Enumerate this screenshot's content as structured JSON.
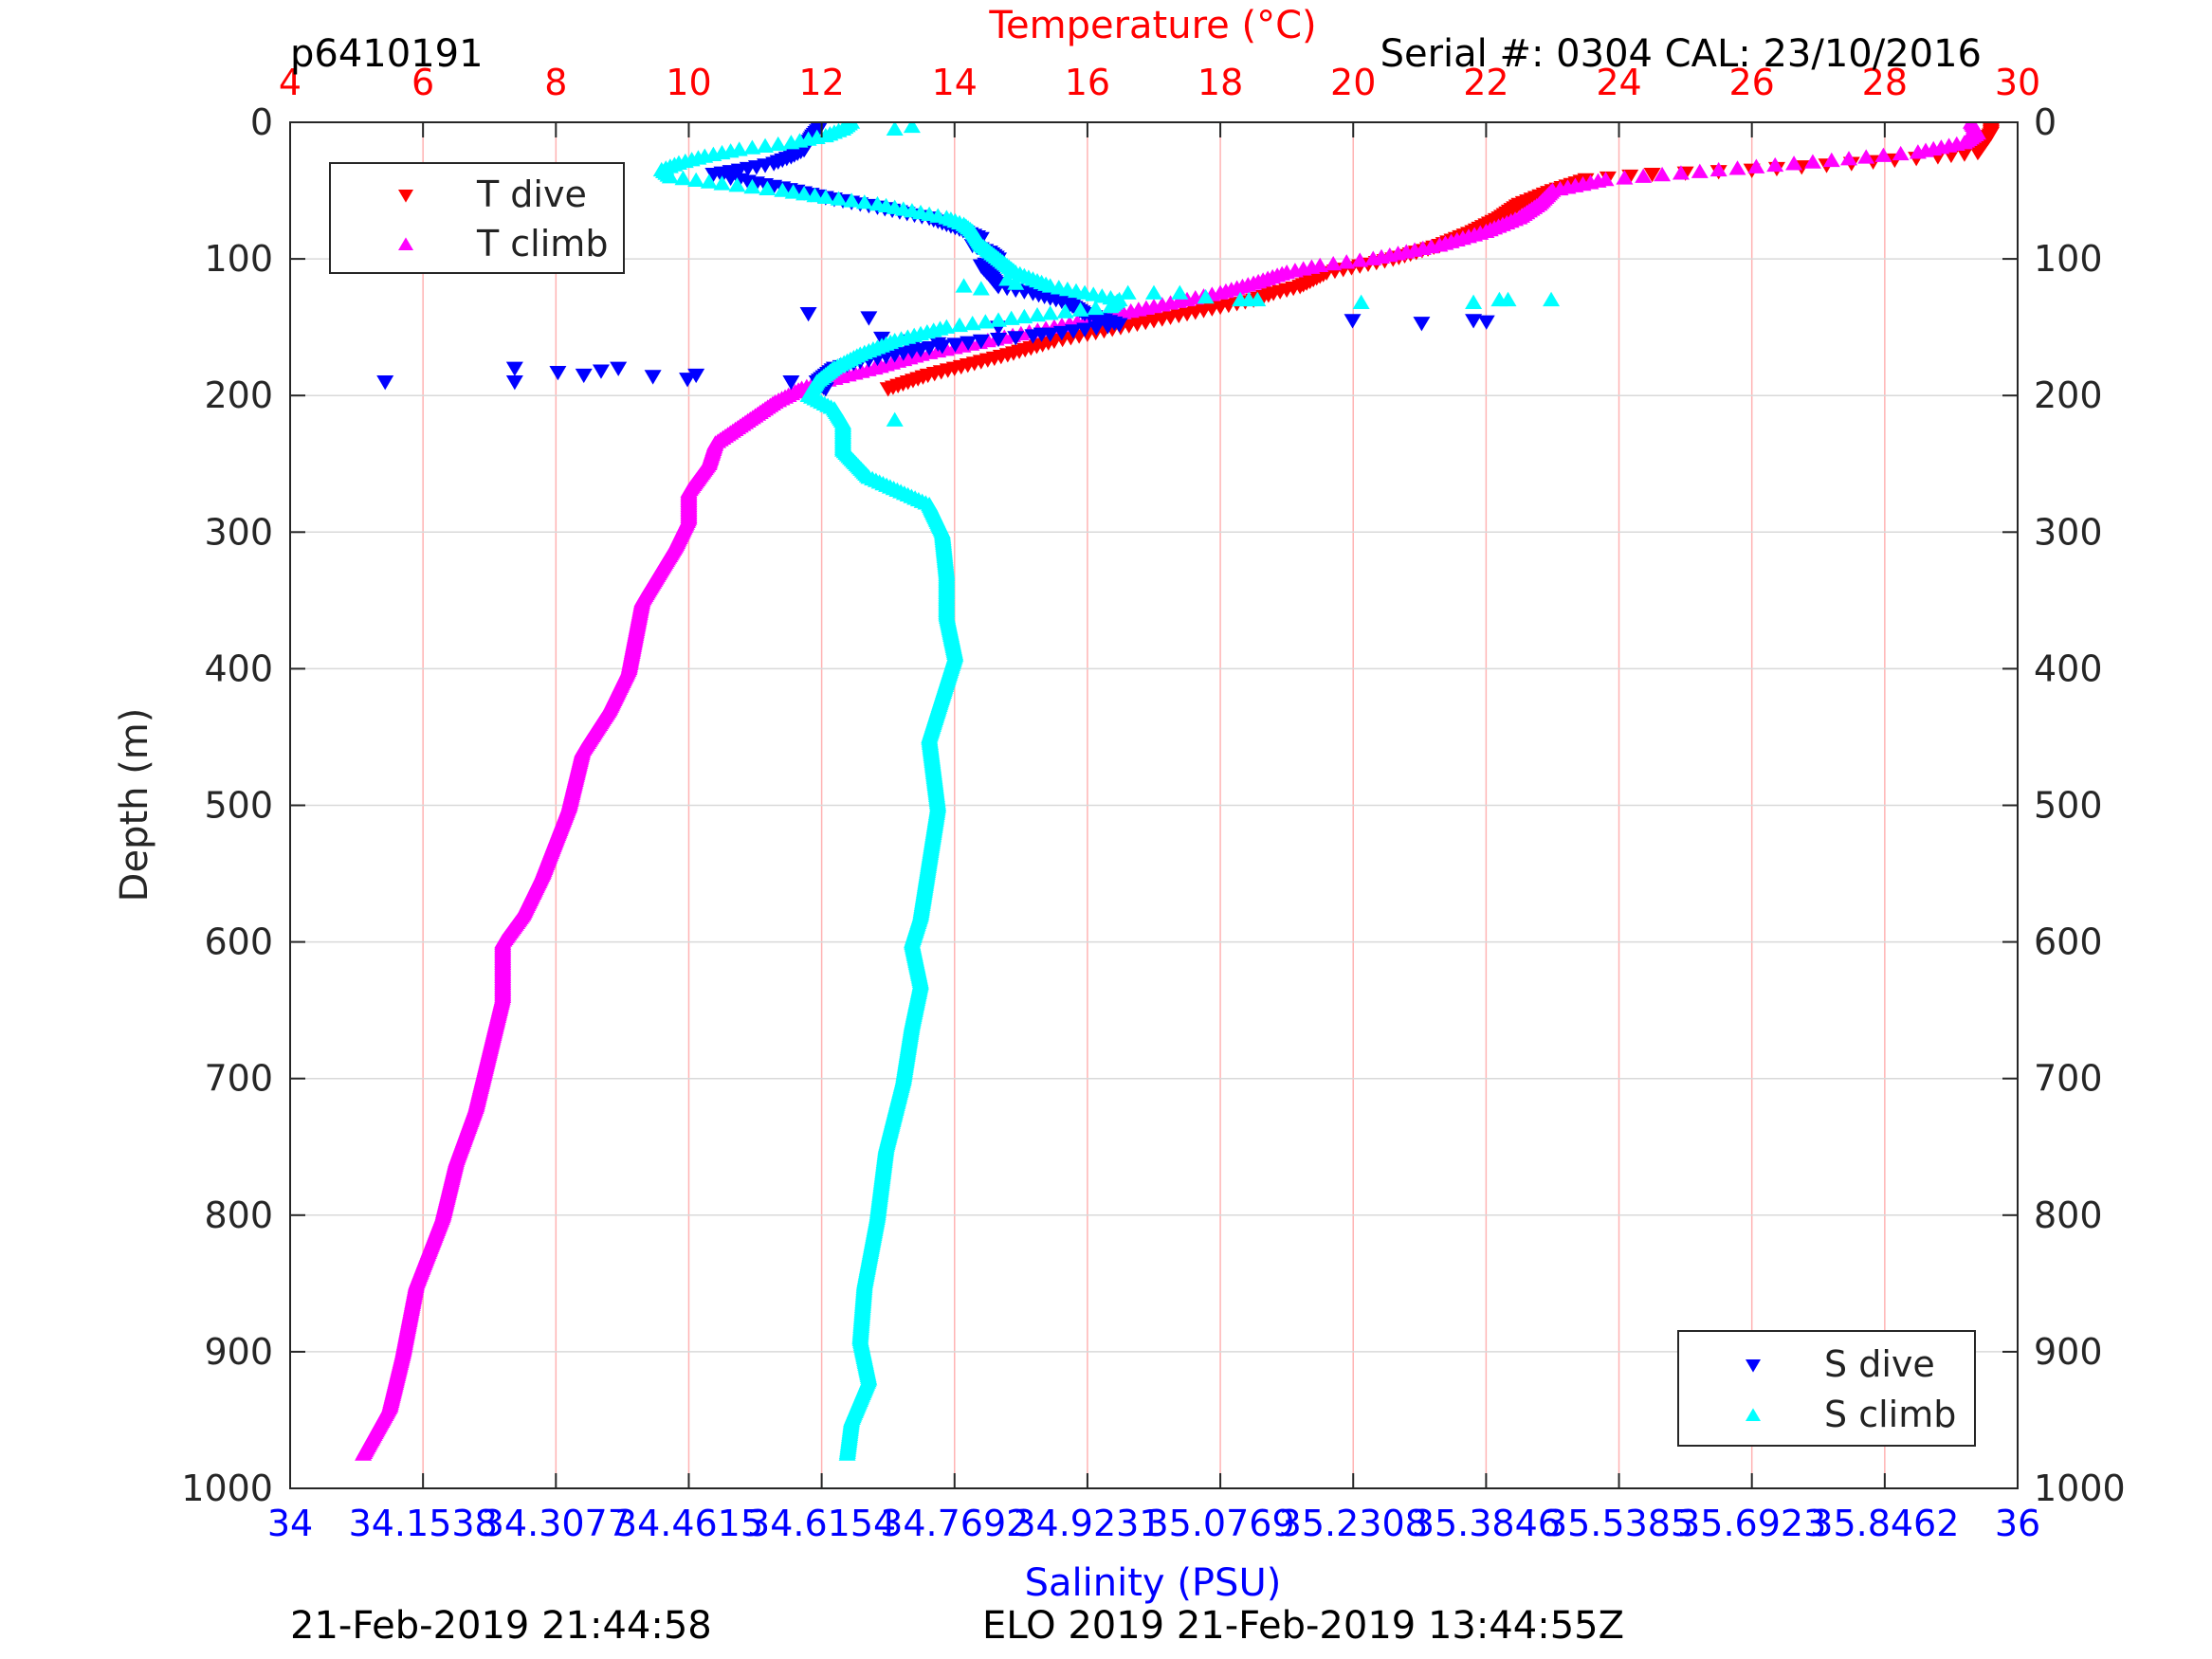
{
  "header": {
    "profile_id": "p6410191",
    "serial": "Serial #: 0304  CAL: 23/10/2016"
  },
  "footer": {
    "left_timestamp": "21-Feb-2019 21:44:58",
    "center_text": "ELO 2019 21-Feb-2019 13:44:55Z"
  },
  "colors": {
    "t_dive": "#ff0000",
    "t_climb": "#ff00ff",
    "s_dive": "#0000ff",
    "s_climb": "#00ffff",
    "temp_axis": "#ff0000",
    "sal_axis": "#0000ff",
    "grid_temp": "#ffb3b3",
    "grid_depth": "#d9d9d9"
  },
  "legend_top": {
    "items": [
      {
        "label": "T dive",
        "marker": "down-triangle",
        "color": "#ff0000"
      },
      {
        "label": "T climb",
        "marker": "up-triangle",
        "color": "#ff00ff"
      }
    ]
  },
  "legend_bottom": {
    "items": [
      {
        "label": "S dive",
        "marker": "down-triangle",
        "color": "#0000ff"
      },
      {
        "label": "S climb",
        "marker": "up-triangle",
        "color": "#00ffff"
      }
    ]
  },
  "chart_data": {
    "type": "scatter",
    "title": "",
    "ylabel": "Depth (m)",
    "temperature_axis": {
      "label": "Temperature (°C)",
      "range": [
        4,
        30
      ],
      "ticks": [
        "4",
        "6",
        "8",
        "10",
        "12",
        "14",
        "16",
        "18",
        "20",
        "22",
        "24",
        "26",
        "28",
        "30"
      ]
    },
    "salinity_axis": {
      "label": "Salinity (PSU)",
      "range": [
        34,
        36
      ],
      "ticks": [
        "34",
        "34.1538",
        "34.3077",
        "34.4615",
        "34.6154",
        "34.7692",
        "34.9231",
        "35.0769",
        "35.2308",
        "35.3846",
        "35.5385",
        "35.6923",
        "35.8462",
        "36"
      ]
    },
    "depth_axis": {
      "range": [
        0,
        1000
      ],
      "reversed": true,
      "ticks": [
        "0",
        "100",
        "200",
        "300",
        "400",
        "500",
        "600",
        "700",
        "800",
        "900",
        "1000"
      ]
    },
    "grid": {
      "temperature_vertical": true,
      "depth_horizontal": true
    },
    "series": [
      {
        "name": "T dive",
        "axis": "temperature",
        "marker": "down-triangle",
        "profile": [
          [
            0,
            29.6
          ],
          [
            8,
            29.6
          ],
          [
            15,
            29.5
          ],
          [
            22,
            29.4
          ],
          [
            25,
            28.8
          ],
          [
            30,
            27.5
          ],
          [
            35,
            26
          ],
          [
            38,
            24.5
          ],
          [
            42,
            23.5
          ],
          [
            50,
            23
          ],
          [
            60,
            22.5
          ],
          [
            70,
            22.2
          ],
          [
            80,
            21.8
          ],
          [
            90,
            21.3
          ],
          [
            100,
            20.6
          ],
          [
            110,
            19.6
          ],
          [
            120,
            19.2
          ],
          [
            125,
            18.8
          ],
          [
            130,
            18.5
          ],
          [
            140,
            17.5
          ],
          [
            150,
            16.5
          ],
          [
            155,
            16
          ],
          [
            160,
            15.5
          ],
          [
            170,
            14.8
          ],
          [
            180,
            14
          ],
          [
            185,
            13.6
          ],
          [
            190,
            13.3
          ],
          [
            195,
            13
          ]
        ],
        "outliers": []
      },
      {
        "name": "T climb",
        "axis": "temperature",
        "marker": "up-triangle",
        "profile": [
          [
            0,
            29.3
          ],
          [
            8,
            29.4
          ],
          [
            15,
            29.2
          ],
          [
            22,
            28.5
          ],
          [
            28,
            27.2
          ],
          [
            35,
            25.5
          ],
          [
            42,
            23.8
          ],
          [
            50,
            23
          ],
          [
            60,
            22.8
          ],
          [
            70,
            22.5
          ],
          [
            80,
            22
          ],
          [
            90,
            21.3
          ],
          [
            100,
            20.3
          ],
          [
            105,
            19.5
          ],
          [
            110,
            19
          ],
          [
            118,
            18.5
          ],
          [
            125,
            18
          ],
          [
            135,
            17
          ],
          [
            150,
            15.5
          ],
          [
            160,
            14.5
          ],
          [
            170,
            13.5
          ],
          [
            180,
            12.8
          ],
          [
            190,
            12
          ],
          [
            195,
            11.7
          ],
          [
            205,
            11.3
          ],
          [
            215,
            11
          ],
          [
            225,
            10.7
          ],
          [
            235,
            10.4
          ],
          [
            250,
            10.3
          ],
          [
            270,
            10
          ],
          [
            290,
            10
          ],
          [
            310,
            9.8
          ],
          [
            350,
            9.3
          ],
          [
            400,
            9.1
          ],
          [
            430,
            8.8
          ],
          [
            460,
            8.4
          ],
          [
            500,
            8.2
          ],
          [
            550,
            7.8
          ],
          [
            580,
            7.5
          ],
          [
            600,
            7.2
          ],
          [
            640,
            7.2
          ],
          [
            680,
            7
          ],
          [
            720,
            6.8
          ],
          [
            760,
            6.5
          ],
          [
            800,
            6.3
          ],
          [
            850,
            5.9
          ],
          [
            900,
            5.7
          ],
          [
            940,
            5.5
          ],
          [
            975,
            5.1
          ]
        ],
        "outliers": []
      },
      {
        "name": "S dive",
        "axis": "salinity",
        "marker": "down-triangle",
        "profile": [
          [
            0,
            34.615
          ],
          [
            5,
            34.612
          ],
          [
            10,
            34.605
          ],
          [
            15,
            34.6
          ],
          [
            20,
            34.595
          ],
          [
            25,
            34.58
          ],
          [
            30,
            34.56
          ],
          [
            35,
            34.52
          ],
          [
            38,
            34.49
          ],
          [
            42,
            34.52
          ],
          [
            48,
            34.57
          ],
          [
            55,
            34.62
          ],
          [
            62,
            34.68
          ],
          [
            70,
            34.74
          ],
          [
            78,
            34.775
          ],
          [
            85,
            34.8
          ],
          [
            90,
            34.79
          ],
          [
            95,
            34.81
          ],
          [
            100,
            34.82
          ],
          [
            105,
            34.8
          ],
          [
            112,
            34.81
          ],
          [
            120,
            34.82
          ],
          [
            125,
            34.86
          ],
          [
            132,
            34.9
          ],
          [
            140,
            34.92
          ],
          [
            148,
            34.96
          ],
          [
            155,
            34.88
          ],
          [
            160,
            34.8
          ],
          [
            165,
            34.74
          ],
          [
            170,
            34.7
          ],
          [
            175,
            34.66
          ],
          [
            180,
            34.63
          ],
          [
            190,
            34.61
          ],
          [
            195,
            34.62
          ]
        ],
        "outliers": [
          [
            140,
            34.6
          ],
          [
            143,
            34.67
          ],
          [
            145,
            35.23
          ],
          [
            147,
            35.31
          ],
          [
            145,
            35.37
          ],
          [
            146,
            35.385
          ],
          [
            150,
            34.82
          ],
          [
            155,
            34.87
          ],
          [
            158,
            34.685
          ],
          [
            160,
            34.715
          ],
          [
            162,
            34.75
          ],
          [
            165,
            34.72
          ],
          [
            180,
            34.26
          ],
          [
            183,
            34.31
          ],
          [
            185,
            34.34
          ],
          [
            182,
            34.36
          ],
          [
            180,
            34.38
          ],
          [
            186,
            34.42
          ],
          [
            185,
            34.47
          ],
          [
            188,
            34.46
          ],
          [
            190,
            34.11
          ],
          [
            190,
            34.26
          ],
          [
            190,
            34.58
          ]
        ]
      },
      {
        "name": "S climb",
        "axis": "salinity",
        "marker": "up-triangle",
        "profile": [
          [
            0,
            34.65
          ],
          [
            5,
            34.64
          ],
          [
            10,
            34.62
          ],
          [
            15,
            34.58
          ],
          [
            20,
            34.52
          ],
          [
            25,
            34.48
          ],
          [
            30,
            34.45
          ],
          [
            35,
            34.43
          ],
          [
            40,
            34.44
          ],
          [
            45,
            34.5
          ],
          [
            50,
            34.57
          ],
          [
            55,
            34.62
          ],
          [
            60,
            34.68
          ],
          [
            65,
            34.72
          ],
          [
            70,
            34.76
          ],
          [
            75,
            34.78
          ],
          [
            80,
            34.79
          ],
          [
            90,
            34.8
          ],
          [
            100,
            34.82
          ],
          [
            110,
            34.84
          ],
          [
            115,
            34.86
          ],
          [
            120,
            34.88
          ],
          [
            125,
            34.92
          ],
          [
            130,
            34.96
          ],
          [
            135,
            34.95
          ],
          [
            140,
            34.88
          ],
          [
            145,
            34.82
          ],
          [
            150,
            34.76
          ],
          [
            160,
            34.7
          ],
          [
            170,
            34.66
          ],
          [
            180,
            34.63
          ],
          [
            190,
            34.61
          ],
          [
            200,
            34.6
          ],
          [
            210,
            34.63
          ],
          [
            220,
            34.64
          ],
          [
            240,
            34.64
          ],
          [
            260,
            34.67
          ],
          [
            280,
            34.74
          ],
          [
            300,
            34.755
          ],
          [
            330,
            34.76
          ],
          [
            360,
            34.76
          ],
          [
            390,
            34.77
          ],
          [
            410,
            34.76
          ],
          [
            450,
            34.74
          ],
          [
            500,
            34.75
          ],
          [
            540,
            34.74
          ],
          [
            580,
            34.73
          ],
          [
            600,
            34.72
          ],
          [
            630,
            34.73
          ],
          [
            660,
            34.72
          ],
          [
            700,
            34.71
          ],
          [
            750,
            34.69
          ],
          [
            800,
            34.68
          ],
          [
            850,
            34.665
          ],
          [
            890,
            34.66
          ],
          [
            920,
            34.67
          ],
          [
            950,
            34.65
          ],
          [
            975,
            34.645
          ]
        ],
        "outliers": [
          [
            5,
            34.7
          ],
          [
            3,
            34.72
          ],
          [
            120,
            34.78
          ],
          [
            122,
            34.8
          ],
          [
            115,
            34.83
          ],
          [
            118,
            34.84
          ],
          [
            125,
            34.97
          ],
          [
            125,
            35.0
          ],
          [
            125,
            35.03
          ],
          [
            128,
            35.06
          ],
          [
            130,
            35.1
          ],
          [
            130,
            35.11
          ],
          [
            130,
            35.12
          ],
          [
            132,
            35.24
          ],
          [
            132,
            35.37
          ],
          [
            130,
            35.4
          ],
          [
            130,
            35.41
          ],
          [
            130,
            35.46
          ],
          [
            218,
            34.7
          ]
        ]
      }
    ]
  }
}
